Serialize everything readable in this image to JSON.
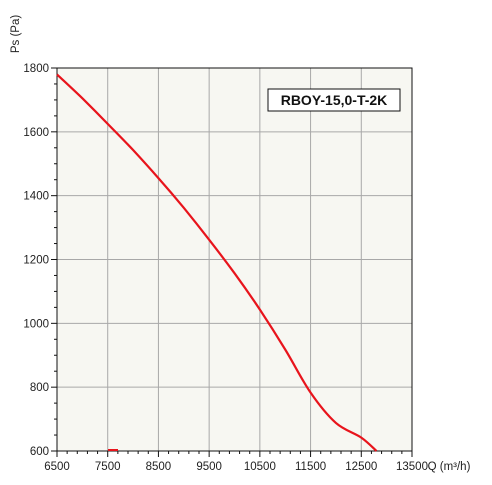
{
  "chart_data": {
    "type": "line",
    "title": "",
    "xlabel": "Q (m³/h)",
    "ylabel": "Ps (Pa)",
    "xlim": [
      6500,
      13500
    ],
    "ylim": [
      600,
      1800
    ],
    "x_ticks": [
      6500,
      7500,
      8500,
      9500,
      10500,
      11500,
      12500,
      13500
    ],
    "y_ticks": [
      600,
      800,
      1000,
      1200,
      1400,
      1600,
      1800
    ],
    "x_tick_labels": [
      "6500",
      "7500",
      "8500",
      "9500",
      "10500",
      "11500",
      "12500",
      "13500"
    ],
    "y_tick_labels": [
      "600",
      "800",
      "1000",
      "1200",
      "1400",
      "1600",
      "1800"
    ],
    "grid": true,
    "annotation": "RBOY-15,0-T-2K",
    "colors": {
      "plot_bg": "#f7f7f2",
      "grid": "#a8a8a8",
      "curve": "#e8141c",
      "axis": "#111111"
    },
    "series": [
      {
        "values_x": [
          6500,
          7000,
          7500,
          8000,
          8500,
          9000,
          9500,
          10000,
          10500,
          11000,
          11500,
          12000,
          12500,
          12800
        ],
        "values_y": [
          1780,
          1705,
          1625,
          1543,
          1455,
          1362,
          1262,
          1157,
          1043,
          918,
          783,
          688,
          642,
          600
        ],
        "color": "#e8141c"
      }
    ]
  }
}
